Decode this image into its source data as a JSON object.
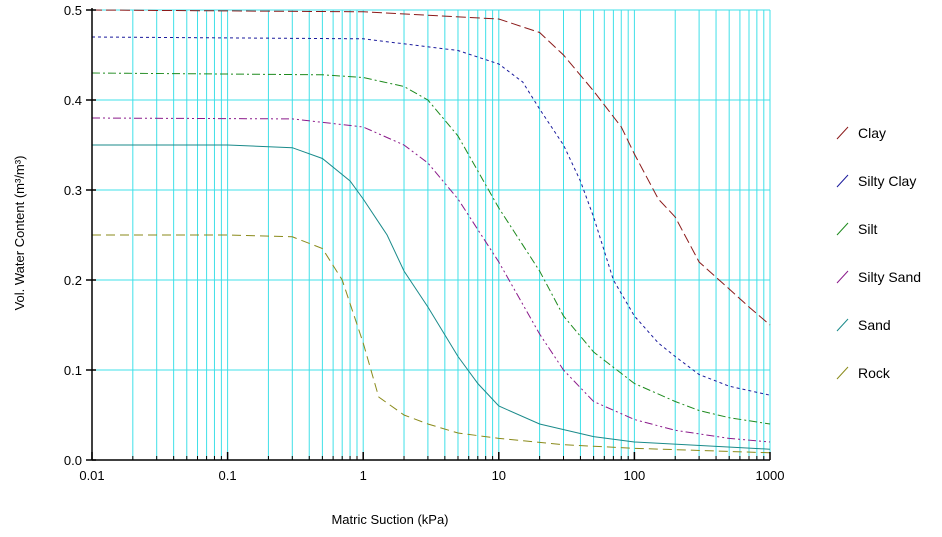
{
  "chart_data": {
    "type": "line",
    "title": "",
    "xlabel": "Matric Suction (kPa)",
    "ylabel": "Vol. Water Content (m³/m³)",
    "x_scale": "log",
    "xlim": [
      0.01,
      1000
    ],
    "ylim": [
      0,
      0.5
    ],
    "x_ticks": [
      0.01,
      0.1,
      1,
      10,
      100,
      1000
    ],
    "x_tick_labels": [
      "0.01",
      "0.1",
      "1",
      "10",
      "100",
      "1000"
    ],
    "y_ticks": [
      0,
      0.1,
      0.2,
      0.3,
      0.4,
      0.5
    ],
    "y_tick_labels": [
      "0.0",
      "0.1",
      "0.2",
      "0.3",
      "0.4",
      "0.5"
    ],
    "grid": true,
    "grid_color": "#40e0e8",
    "legend_position": "right",
    "series": [
      {
        "name": "Clay",
        "color": "#8b1a1a",
        "dash": "10,4",
        "x": [
          0.01,
          1,
          10,
          20,
          30,
          50,
          80,
          100,
          150,
          200,
          300,
          500,
          700,
          1000
        ],
        "y": [
          0.5,
          0.498,
          0.49,
          0.475,
          0.45,
          0.41,
          0.37,
          0.34,
          0.29,
          0.27,
          0.22,
          0.19,
          0.17,
          0.15
        ]
      },
      {
        "name": "Silty Clay",
        "color": "#1a1a9c",
        "dash": "3,3",
        "x": [
          0.01,
          1,
          5,
          10,
          15,
          20,
          30,
          40,
          50,
          70,
          100,
          150,
          200,
          300,
          500,
          1000
        ],
        "y": [
          0.47,
          0.468,
          0.455,
          0.44,
          0.42,
          0.39,
          0.35,
          0.31,
          0.27,
          0.2,
          0.16,
          0.13,
          0.115,
          0.095,
          0.082,
          0.072
        ]
      },
      {
        "name": "Silt",
        "color": "#1e8a1e",
        "dash": "8,3,2,3",
        "x": [
          0.01,
          0.5,
          1,
          2,
          3,
          5,
          10,
          20,
          30,
          50,
          100,
          200,
          300,
          500,
          1000
        ],
        "y": [
          0.43,
          0.428,
          0.425,
          0.415,
          0.4,
          0.36,
          0.28,
          0.21,
          0.16,
          0.12,
          0.085,
          0.065,
          0.055,
          0.047,
          0.04
        ]
      },
      {
        "name": "Silty Sand",
        "color": "#8b1a8b",
        "dash": "8,3,2,3,2,3",
        "x": [
          0.01,
          0.3,
          1,
          2,
          3,
          5,
          10,
          20,
          30,
          50,
          100,
          200,
          500,
          1000
        ],
        "y": [
          0.38,
          0.379,
          0.37,
          0.35,
          0.33,
          0.29,
          0.22,
          0.14,
          0.1,
          0.065,
          0.045,
          0.033,
          0.024,
          0.02
        ]
      },
      {
        "name": "Sand",
        "color": "#1a8a8a",
        "dash": "",
        "x": [
          0.01,
          0.1,
          0.3,
          0.5,
          0.8,
          1,
          1.5,
          2,
          3,
          5,
          7,
          10,
          20,
          50,
          100,
          1000
        ],
        "y": [
          0.35,
          0.35,
          0.347,
          0.335,
          0.31,
          0.29,
          0.25,
          0.21,
          0.17,
          0.115,
          0.085,
          0.06,
          0.04,
          0.026,
          0.02,
          0.012
        ]
      },
      {
        "name": "Rock",
        "color": "#8a8a1a",
        "dash": "9,5",
        "x": [
          0.01,
          0.1,
          0.3,
          0.5,
          0.7,
          1,
          1.3,
          2,
          3,
          5,
          10,
          30,
          100,
          1000
        ],
        "y": [
          0.25,
          0.25,
          0.248,
          0.235,
          0.2,
          0.13,
          0.07,
          0.05,
          0.04,
          0.03,
          0.024,
          0.017,
          0.013,
          0.008
        ]
      }
    ]
  }
}
